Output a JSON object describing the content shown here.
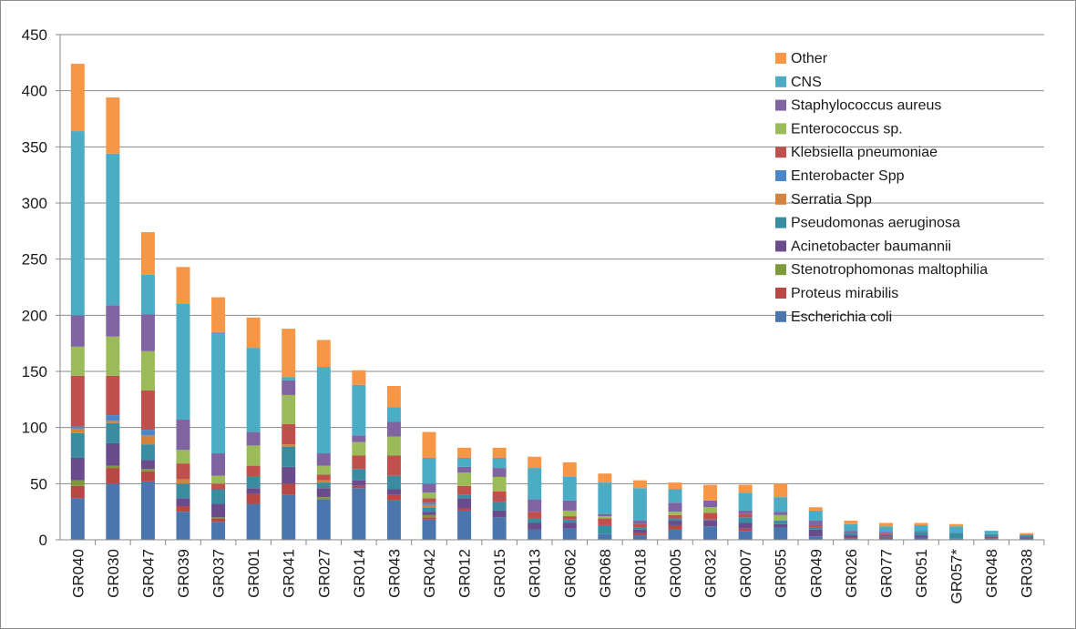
{
  "chart_data": {
    "type": "bar",
    "stacked": true,
    "title": "",
    "xlabel": "",
    "ylabel": "",
    "ylim": [
      0,
      450
    ],
    "yticks": [
      "0",
      "50",
      "100",
      "150",
      "200",
      "250",
      "300",
      "350",
      "400",
      "450"
    ],
    "grid": true,
    "legend_position": "top-right",
    "categories": [
      "GR040",
      "GR030",
      "GR047",
      "GR039",
      "GR037",
      "GR001",
      "GR041",
      "GR027",
      "GR014",
      "GR043",
      "GR042",
      "GR012",
      "GR015",
      "GR013",
      "GR062",
      "GR068",
      "GR018",
      "GR005",
      "GR032",
      "GR007",
      "GR055",
      "GR049",
      "GR026",
      "GR077",
      "GR051",
      "GR057*",
      "GR048",
      "GR038"
    ],
    "series": [
      {
        "name": "Escherichia coli",
        "color": "#4a76ad",
        "values": [
          37,
          50,
          52,
          25,
          16,
          32,
          40,
          36,
          46,
          35,
          18,
          26,
          20,
          9,
          10,
          5,
          4,
          9,
          12,
          8,
          11,
          3,
          1,
          2,
          2,
          1,
          1,
          2
        ]
      },
      {
        "name": "Proteus mirabilis",
        "color": "#b84845",
        "values": [
          11,
          14,
          9,
          5,
          3,
          9,
          10,
          0,
          2,
          5,
          2,
          2,
          0,
          0,
          0,
          0,
          2,
          4,
          0,
          2,
          0,
          0,
          1,
          1,
          0,
          0,
          1,
          0
        ]
      },
      {
        "name": "Stenotrophomonas maltophilia",
        "color": "#7c9a3b",
        "values": [
          5,
          2,
          2,
          0,
          1,
          0,
          0,
          2,
          0,
          0,
          2,
          0,
          0,
          0,
          0,
          0,
          0,
          0,
          0,
          0,
          0,
          0,
          0,
          0,
          0,
          0,
          0,
          0
        ]
      },
      {
        "name": "Acinetobacter baumannii",
        "color": "#6a4c8c",
        "values": [
          20,
          20,
          8,
          7,
          12,
          5,
          15,
          8,
          5,
          5,
          3,
          9,
          6,
          6,
          5,
          0,
          3,
          4,
          5,
          5,
          3,
          6,
          2,
          1,
          2,
          0,
          1,
          1
        ]
      },
      {
        "name": "Pseudomonas aeruginosa",
        "color": "#3a8ca0",
        "values": [
          22,
          18,
          14,
          13,
          13,
          10,
          18,
          5,
          10,
          12,
          4,
          3,
          8,
          4,
          3,
          8,
          2,
          2,
          1,
          5,
          3,
          2,
          2,
          1,
          3,
          5,
          2,
          1
        ]
      },
      {
        "name": "Serratia Spp",
        "color": "#d5823b",
        "values": [
          4,
          2,
          8,
          4,
          0,
          0,
          2,
          2,
          0,
          0,
          2,
          0,
          0,
          0,
          0,
          0,
          0,
          0,
          0,
          0,
          0,
          0,
          0,
          0,
          0,
          0,
          0,
          0
        ]
      },
      {
        "name": "Enterobacter Spp",
        "color": "#4a86c8",
        "values": [
          2,
          5,
          5,
          0,
          0,
          0,
          0,
          0,
          0,
          0,
          2,
          0,
          0,
          0,
          0,
          0,
          0,
          0,
          0,
          0,
          0,
          0,
          0,
          0,
          0,
          0,
          0,
          0
        ]
      },
      {
        "name": "Klebsiella pneumoniae",
        "color": "#c0504d",
        "values": [
          45,
          35,
          35,
          14,
          5,
          10,
          18,
          5,
          12,
          18,
          4,
          8,
          9,
          6,
          3,
          6,
          3,
          3,
          6,
          3,
          0,
          2,
          0,
          1,
          0,
          0,
          0,
          0
        ]
      },
      {
        "name": "Enterococcus sp.",
        "color": "#9bbb59",
        "values": [
          26,
          35,
          35,
          12,
          7,
          18,
          26,
          8,
          12,
          17,
          5,
          12,
          13,
          0,
          5,
          2,
          0,
          3,
          5,
          0,
          5,
          0,
          0,
          0,
          0,
          0,
          0,
          0
        ]
      },
      {
        "name": "Staphylococcus aureus",
        "color": "#8064a2",
        "values": [
          28,
          28,
          33,
          27,
          20,
          12,
          13,
          11,
          6,
          13,
          8,
          5,
          8,
          11,
          9,
          2,
          3,
          8,
          6,
          3,
          3,
          4,
          2,
          1,
          1,
          0,
          0,
          0
        ]
      },
      {
        "name": "CNS",
        "color": "#4bacc6",
        "values": [
          164,
          135,
          35,
          103,
          108,
          75,
          3,
          77,
          45,
          13,
          23,
          8,
          9,
          28,
          21,
          28,
          29,
          12,
          0,
          16,
          13,
          9,
          6,
          5,
          5,
          6,
          3,
          1
        ]
      },
      {
        "name": "Other",
        "color": "#f79646",
        "values": [
          60,
          50,
          38,
          33,
          31,
          27,
          43,
          24,
          13,
          19,
          23,
          9,
          9,
          10,
          13,
          8,
          7,
          6,
          14,
          7,
          12,
          3,
          3,
          3,
          2,
          2,
          0,
          1
        ]
      }
    ]
  }
}
